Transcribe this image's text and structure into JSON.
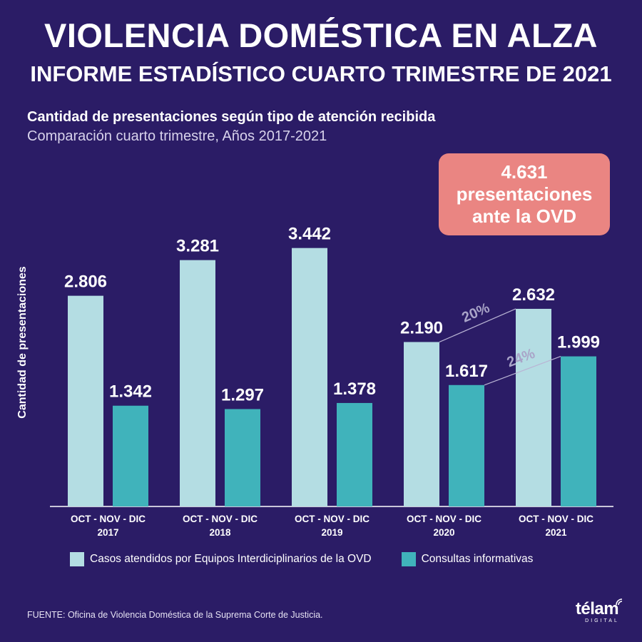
{
  "header": {
    "title": "VIOLENCIA DOMÉSTICA EN ALZA",
    "subtitle": "INFORME ESTADÍSTICO CUARTO TRIMESTRE DE 2021"
  },
  "callout": {
    "line1": "4.631",
    "line2": "presentaciones",
    "line3": "ante la OVD",
    "background": "#ea8582"
  },
  "chart_data": {
    "type": "bar",
    "title": "Cantidad de presentaciones según tipo de atención recibida",
    "subtitle": "Comparación cuarto trimestre, Años 2017-2021",
    "ylabel": "Cantidad de presentaciones",
    "categories": [
      {
        "line1": "OCT - NOV - DIC",
        "line2": "2017"
      },
      {
        "line1": "OCT - NOV - DIC",
        "line2": "2018"
      },
      {
        "line1": "OCT - NOV - DIC",
        "line2": "2019"
      },
      {
        "line1": "OCT - NOV - DIC",
        "line2": "2020"
      },
      {
        "line1": "OCT - NOV - DIC",
        "line2": "2021"
      }
    ],
    "series": [
      {
        "name": "Casos atendidos por Equipos Interdiciplinarios de la OVD",
        "color": "#b4dde3",
        "values": [
          2806,
          3281,
          3442,
          2190,
          2632
        ],
        "labels": [
          "2.806",
          "3.281",
          "3.442",
          "2.190",
          "2.632"
        ]
      },
      {
        "name": "Consultas informativas",
        "color": "#40b3bb",
        "values": [
          1342,
          1297,
          1378,
          1617,
          1999
        ],
        "labels": [
          "1.342",
          "1.297",
          "1.378",
          "1.617",
          "1.999"
        ]
      }
    ],
    "ylim": [
      0,
      3800
    ],
    "grid": false,
    "legend": "bottom",
    "annotations": [
      {
        "text": "20%",
        "series": 0,
        "from_category": 3,
        "to_category": 4
      },
      {
        "text": "24%",
        "series": 1,
        "from_category": 3,
        "to_category": 4
      }
    ]
  },
  "footer": {
    "source": "FUENTE: Oficina de Violencia Doméstica de la Suprema Corte de Justicia.",
    "brand": "télam",
    "brand_sub": "DIGITAL"
  }
}
